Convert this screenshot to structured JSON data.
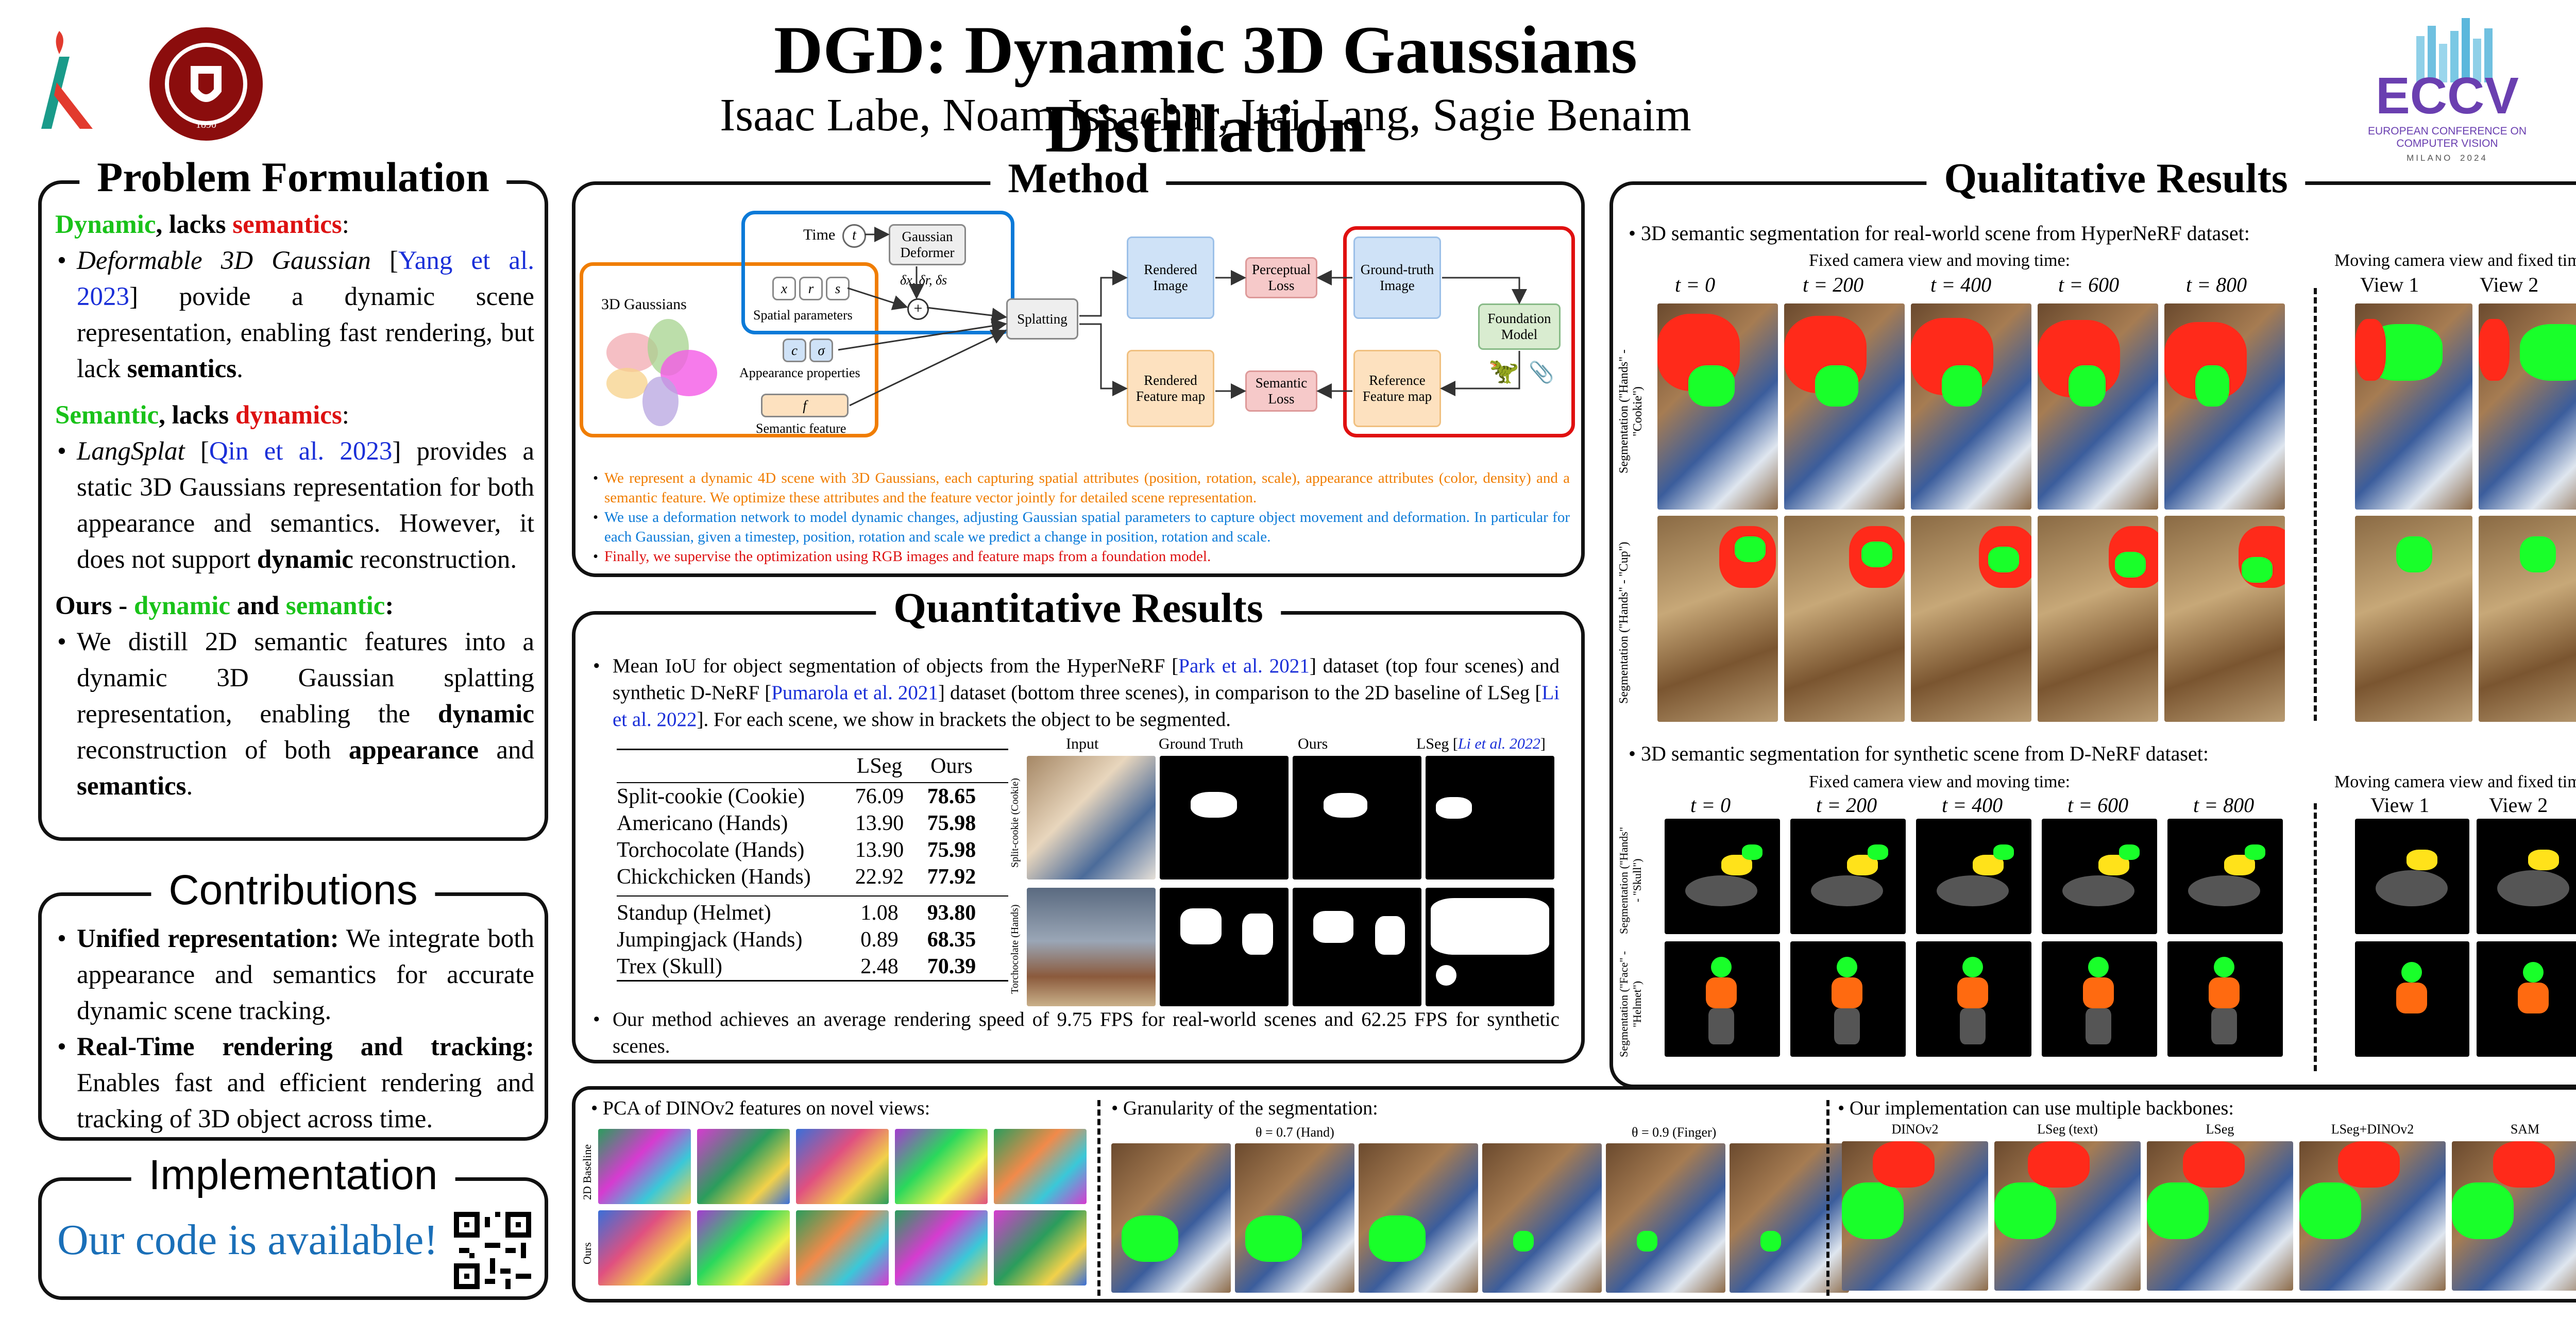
{
  "header": {
    "title": "DGD: Dynamic 3D Gaussians Distillation",
    "authors": "Isaac Labe, Noam Issachar, Itai Lang, Sagie Benaim",
    "eccv_full": "EUROPEAN CONFERENCE ON COMPUTER VISION",
    "eccv_city": "MILANO",
    "eccv_year": "2024",
    "seal_year": "1890"
  },
  "problem": {
    "title": "Problem Formulation",
    "h1_a": "Dynamic",
    "h1_b": ", lacks ",
    "h1_c": "semantics",
    "h1_d": ":",
    "b1_a": "Deformable 3D Gaussian",
    "b1_b": " [",
    "b1_c": "Yang et al. 2023",
    "b1_d": "] povide a dynamic scene representation, enabling fast rendering, but lack ",
    "b1_e": "semantics",
    "b1_f": ".",
    "h2_a": "Semantic",
    "h2_b": ", lacks ",
    "h2_c": "dynamics",
    "h2_d": ":",
    "b2_a": "LangSplat",
    "b2_b": " [",
    "b2_c": "Qin et al. 2023",
    "b2_d": "] provides a static 3D Gaussians representation for both appearance and semantics. However, it does not support ",
    "b2_e": "dynamic",
    "b2_f": " reconstruction.",
    "h3_a": "Ours - ",
    "h3_b": "dynamic",
    "h3_c": " and ",
    "h3_d": "semantic",
    "h3_e": ":",
    "b3_a": "We distill 2D semantic features into a dynamic 3D Gaussian splatting representation, enabling the ",
    "b3_b": "dynamic",
    "b3_c": " reconstruction of both ",
    "b3_d": "appearance",
    "b3_e": " and ",
    "b3_f": "semantics",
    "b3_g": "."
  },
  "contrib": {
    "title": "Contributions",
    "c1_a": "Unified representation:",
    "c1_b": " We integrate both appearance and semantics for accurate dynamic scene tracking.",
    "c2_a": "Real-Time rendering and tracking:",
    "c2_b": " Enables fast and efficient rendering and tracking of 3D object across time."
  },
  "impl": {
    "title": "Implementation",
    "text": "Our code is available!"
  },
  "method": {
    "title": "Method",
    "time": "Time",
    "t": "t",
    "deformer": "Gaussian Deformer",
    "deltas": "δx, δr, δs",
    "gauss3d": "3D Gaussians",
    "spatial": "Spatial parameters",
    "x": "x",
    "r": "r",
    "s": "s",
    "c": "c",
    "sigma": "σ",
    "appearance": "Appearance properties",
    "f": "f",
    "semfeat": "Semantic feature",
    "splatting": "Splatting",
    "rendered_img": "Rendered Image",
    "rendered_fm": "Rendered Feature map",
    "perceptual": "Perceptual Loss",
    "semantic_loss": "Semantic Loss",
    "gt_img": "Ground-truth Image",
    "ref_fm": "Reference Feature map",
    "foundation": "Foundation Model",
    "bullets": [
      "We represent a dynamic 4D scene with 3D Gaussians, each capturing spatial attributes (position, rotation, scale), appearance attributes (color, density) and a semantic feature. We optimize these attributes and the feature vector jointly for detailed scene representation.",
      "We use a deformation network to model dynamic changes, adjusting Gaussian spatial parameters to capture object movement and deformation. In particular for each Gaussian, given a timestep, position, rotation and scale we predict a change in position, rotation and scale.",
      "Finally, we supervise the optimization using RGB images and feature maps from a foundation model."
    ],
    "colors": [
      "#f07d00",
      "#0b7ad8",
      "#e01010"
    ]
  },
  "quant": {
    "title": "Quantitative Results",
    "b1_a": "Mean IoU for object segmentation of objects from the HyperNeRF [",
    "b1_b": "Park et al. 2021",
    "b1_c": "] dataset (top four scenes) and synthetic D-NeRF [",
    "b1_d": "Pumarola et al. 2021",
    "b1_e": "] dataset (bottom three scenes), in comparison to the 2D baseline of LSeg [",
    "b1_f": "Li et al. 2022",
    "b1_g": "]. For each scene, we show in brackets the object to be segmented.",
    "col_lseg": "LSeg",
    "col_ours": "Ours",
    "rows_top": [
      {
        "scene": "Split-cookie (Cookie)",
        "lseg": "76.09",
        "ours": "78.65"
      },
      {
        "scene": "Americano (Hands)",
        "lseg": "13.90",
        "ours": "75.98"
      },
      {
        "scene": "Torchocolate (Hands)",
        "lseg": "13.90",
        "ours": "75.98"
      },
      {
        "scene": "Chickchicken (Hands)",
        "lseg": "22.92",
        "ours": "77.92"
      }
    ],
    "rows_bottom": [
      {
        "scene": "Standup (Helmet)",
        "lseg": "1.08",
        "ours": "93.80"
      },
      {
        "scene": "Jumpingjack (Hands)",
        "lseg": "0.89",
        "ours": "68.35"
      },
      {
        "scene": "Trex (Skull)",
        "lseg": "2.48",
        "ours": "70.39"
      }
    ],
    "img_headers": [
      "Input",
      "Ground Truth",
      "Ours",
      "LSeg"
    ],
    "lseg_ref": "Li et al. 2022",
    "row_labels": [
      "Split-cookie (Cookie)",
      "Torchocolate (Hands)"
    ],
    "b2": "Our method achieves an average rendering speed of 9.75 FPS for real-world scenes and 62.25 FPS for synthetic scenes."
  },
  "qual": {
    "title": "Qualitative Results",
    "b1": "3D semantic segmentation for real-world scene from HyperNeRF dataset:",
    "fixed_cam": "Fixed camera view and moving time:",
    "moving_cam": "Moving camera view and fixed time:",
    "times": [
      "t = 0",
      "t = 200",
      "t = 400",
      "t = 600",
      "t = 800"
    ],
    "views": [
      "View 1",
      "View 2"
    ],
    "seg_label": "Segmentation",
    "row1_label": "(\"Hands\" - \"Cookie\")",
    "row2_label": "(\"Hands\" - \"Cup\")",
    "b2": "3D semantic segmentation for synthetic scene from D-NeRF dataset:",
    "row3_label": "(\"Hands\" - \"Skull\")",
    "row4_label": "(\"Face\" - \"Helmet\")"
  },
  "bottom": {
    "pca": "PCA of DINOv2 features on novel views:",
    "pca_rows": [
      "2D Baseline",
      "Ours"
    ],
    "gran": "Granularity of the segmentation:",
    "gran_a": "θ = 0.7 (Hand)",
    "gran_b": "θ = 0.9 (Finger)",
    "backbones": "Our implementation can use multiple backbones:",
    "bb_labels": [
      "DINOv2",
      "LSeg (text)",
      "LSeg",
      "LSeg+DINOv2",
      "SAM"
    ]
  }
}
